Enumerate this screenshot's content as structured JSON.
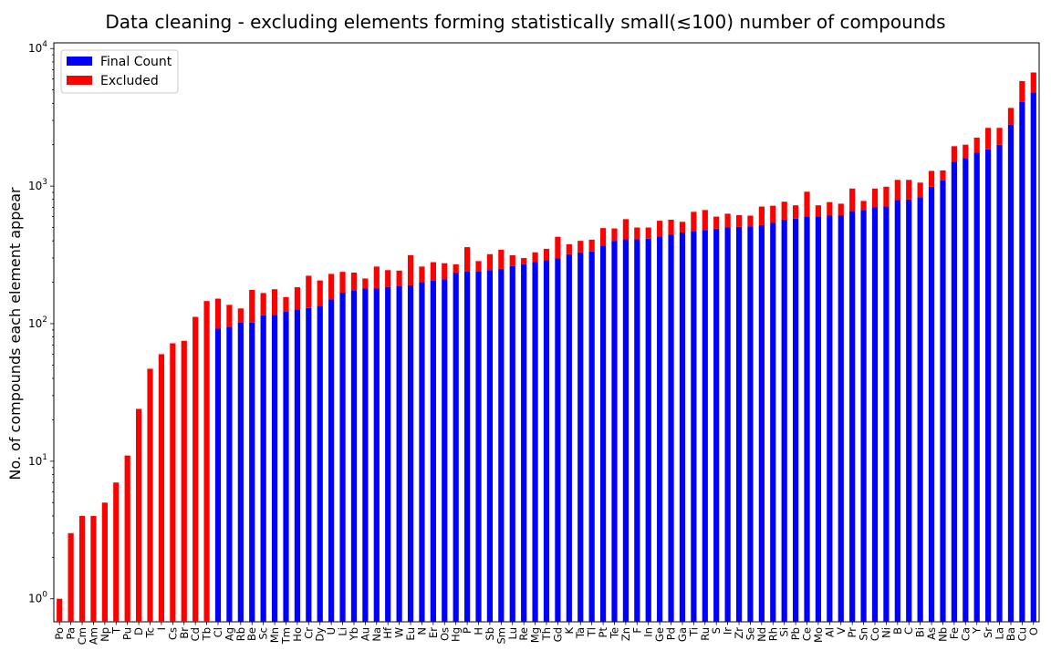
{
  "chart_data": {
    "type": "bar",
    "stacked": true,
    "title": "Data cleaning - excluding elements forming statistically small(≲100) number of compounds",
    "xlabel": "",
    "ylabel": "No. of compounds each element appear",
    "yscale": "log",
    "ylim": [
      0.68,
      11000
    ],
    "yticks": [
      1,
      10,
      100,
      1000,
      10000
    ],
    "ytick_labels": [
      {
        "base": "10",
        "exp": "0"
      },
      {
        "base": "10",
        "exp": "1"
      },
      {
        "base": "10",
        "exp": "2"
      },
      {
        "base": "10",
        "exp": "3"
      },
      {
        "base": "10",
        "exp": "4"
      }
    ],
    "legend": {
      "placement": "upper-left"
    },
    "categories": [
      "Po",
      "Pa",
      "Cm",
      "Am",
      "Np",
      "T",
      "Pu",
      "D",
      "Tc",
      "I",
      "Cs",
      "Br",
      "Cd",
      "Tb",
      "Cl",
      "Ag",
      "Rb",
      "Be",
      "Sc",
      "Mn",
      "Tm",
      "Ho",
      "Cr",
      "Dy",
      "U",
      "Li",
      "Yb",
      "Au",
      "Na",
      "Hf",
      "W",
      "Eu",
      "N",
      "Er",
      "Os",
      "Hg",
      "P",
      "H",
      "Sb",
      "Sm",
      "Lu",
      "Re",
      "Mg",
      "Th",
      "Gd",
      "K",
      "Ta",
      "Tl",
      "Pt",
      "Te",
      "Zn",
      "F",
      "In",
      "Ge",
      "Pd",
      "Ga",
      "Ti",
      "Ru",
      "S",
      "Ir",
      "Zr",
      "Se",
      "Nd",
      "Rh",
      "Si",
      "Pb",
      "Ce",
      "Mo",
      "Al",
      "V",
      "Pr",
      "Sn",
      "Co",
      "Ni",
      "B",
      "C",
      "Bi",
      "As",
      "Nb",
      "Fe",
      "Ca",
      "Y",
      "Sr",
      "La",
      "Ba",
      "Cu",
      "O"
    ],
    "series": [
      {
        "name": "Final Count",
        "color": "#0000ff",
        "values": [
          0,
          0,
          0,
          0,
          0,
          0,
          0,
          0,
          0,
          0,
          0,
          0,
          0,
          0,
          92,
          95,
          102,
          102,
          115,
          116,
          122,
          127,
          130,
          135,
          150,
          168,
          175,
          180,
          180,
          185,
          188,
          190,
          200,
          205,
          210,
          235,
          240,
          240,
          245,
          250,
          262,
          270,
          280,
          290,
          298,
          320,
          330,
          335,
          370,
          400,
          410,
          410,
          415,
          430,
          445,
          460,
          470,
          480,
          490,
          500,
          505,
          510,
          520,
          540,
          570,
          580,
          600,
          600,
          610,
          610,
          660,
          670,
          700,
          710,
          790,
          800,
          830,
          990,
          1100,
          1500,
          1600,
          1750,
          1850,
          2000,
          2800,
          4100,
          4800
        ]
      },
      {
        "name": "Excluded",
        "color": "#ff0000",
        "values": [
          1,
          3,
          4,
          4,
          5,
          7,
          11,
          24,
          47,
          60,
          72,
          75,
          112,
          146,
          60,
          42,
          27,
          74,
          52,
          62,
          34,
          57,
          93,
          71,
          80,
          70,
          60,
          33,
          80,
          60,
          55,
          125,
          60,
          75,
          65,
          35,
          120,
          45,
          75,
          95,
          52,
          30,
          50,
          60,
          130,
          58,
          70,
          73,
          125,
          92,
          165,
          90,
          85,
          130,
          125,
          90,
          180,
          190,
          110,
          130,
          110,
          100,
          190,
          180,
          200,
          145,
          310,
          125,
          155,
          135,
          300,
          110,
          260,
          280,
          320,
          310,
          230,
          300,
          200,
          450,
          400,
          500,
          800,
          650,
          900,
          1700,
          1900
        ]
      }
    ]
  }
}
